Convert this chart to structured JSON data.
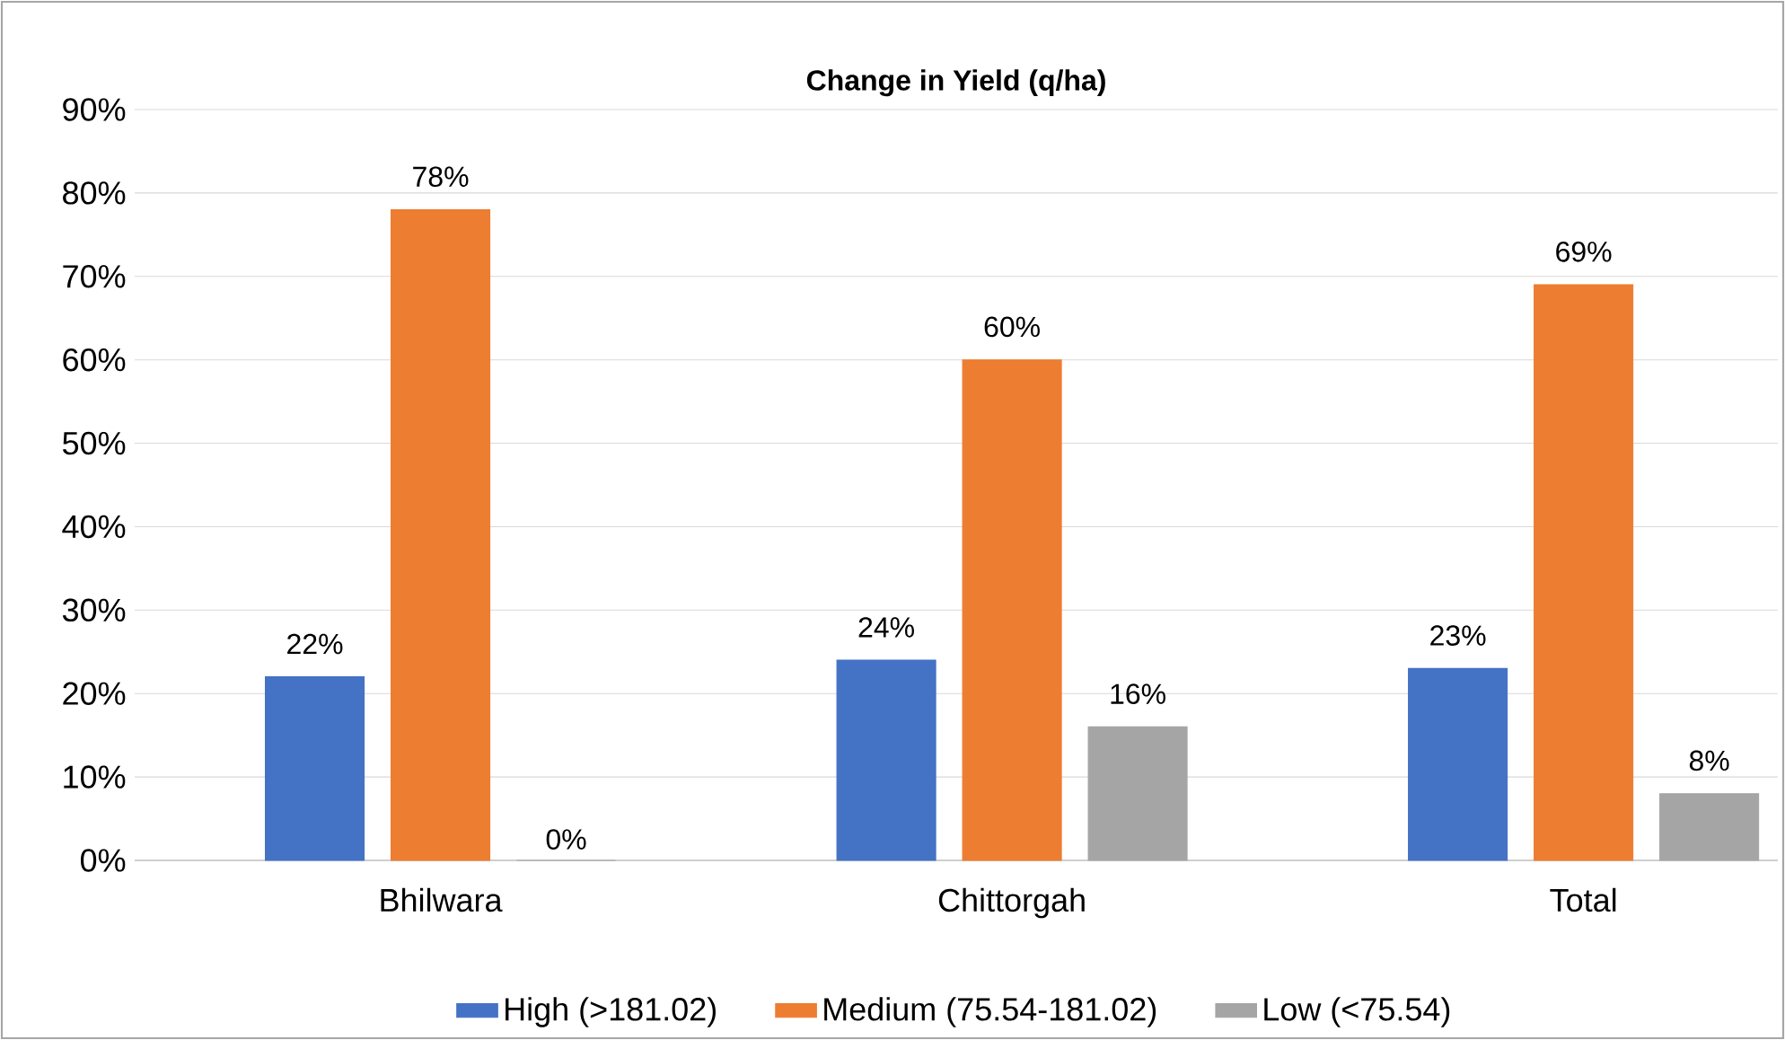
{
  "chart_data": {
    "type": "bar",
    "title": "Change in Yield (q/ha)",
    "categories": [
      "Bhilwara",
      "Chittorgah",
      "Total"
    ],
    "series": [
      {
        "name": "High (>181.02)",
        "color": "#4472c4",
        "values": [
          22,
          24,
          23
        ],
        "value_labels": [
          "22%",
          "24%",
          "23%"
        ]
      },
      {
        "name": "Medium (75.54-181.02)",
        "color": "#ed7d31",
        "values": [
          78,
          60,
          69
        ],
        "value_labels": [
          "78%",
          "60%",
          "69%"
        ]
      },
      {
        "name": "Low (<75.54)",
        "color": "#a5a5a5",
        "values": [
          0,
          16,
          8
        ],
        "value_labels": [
          "0%",
          "16%",
          "8%"
        ]
      }
    ],
    "ylim": [
      0,
      90
    ],
    "yticks": [
      {
        "value": 0,
        "label": "0%"
      },
      {
        "value": 10,
        "label": "10%"
      },
      {
        "value": 20,
        "label": "20%"
      },
      {
        "value": 30,
        "label": "30%"
      },
      {
        "value": 40,
        "label": "40%"
      },
      {
        "value": 50,
        "label": "50%"
      },
      {
        "value": 60,
        "label": "60%"
      },
      {
        "value": 70,
        "label": "70%"
      },
      {
        "value": 80,
        "label": "80%"
      },
      {
        "value": 90,
        "label": "90%"
      }
    ],
    "grid": "y",
    "legend": "bottom"
  }
}
